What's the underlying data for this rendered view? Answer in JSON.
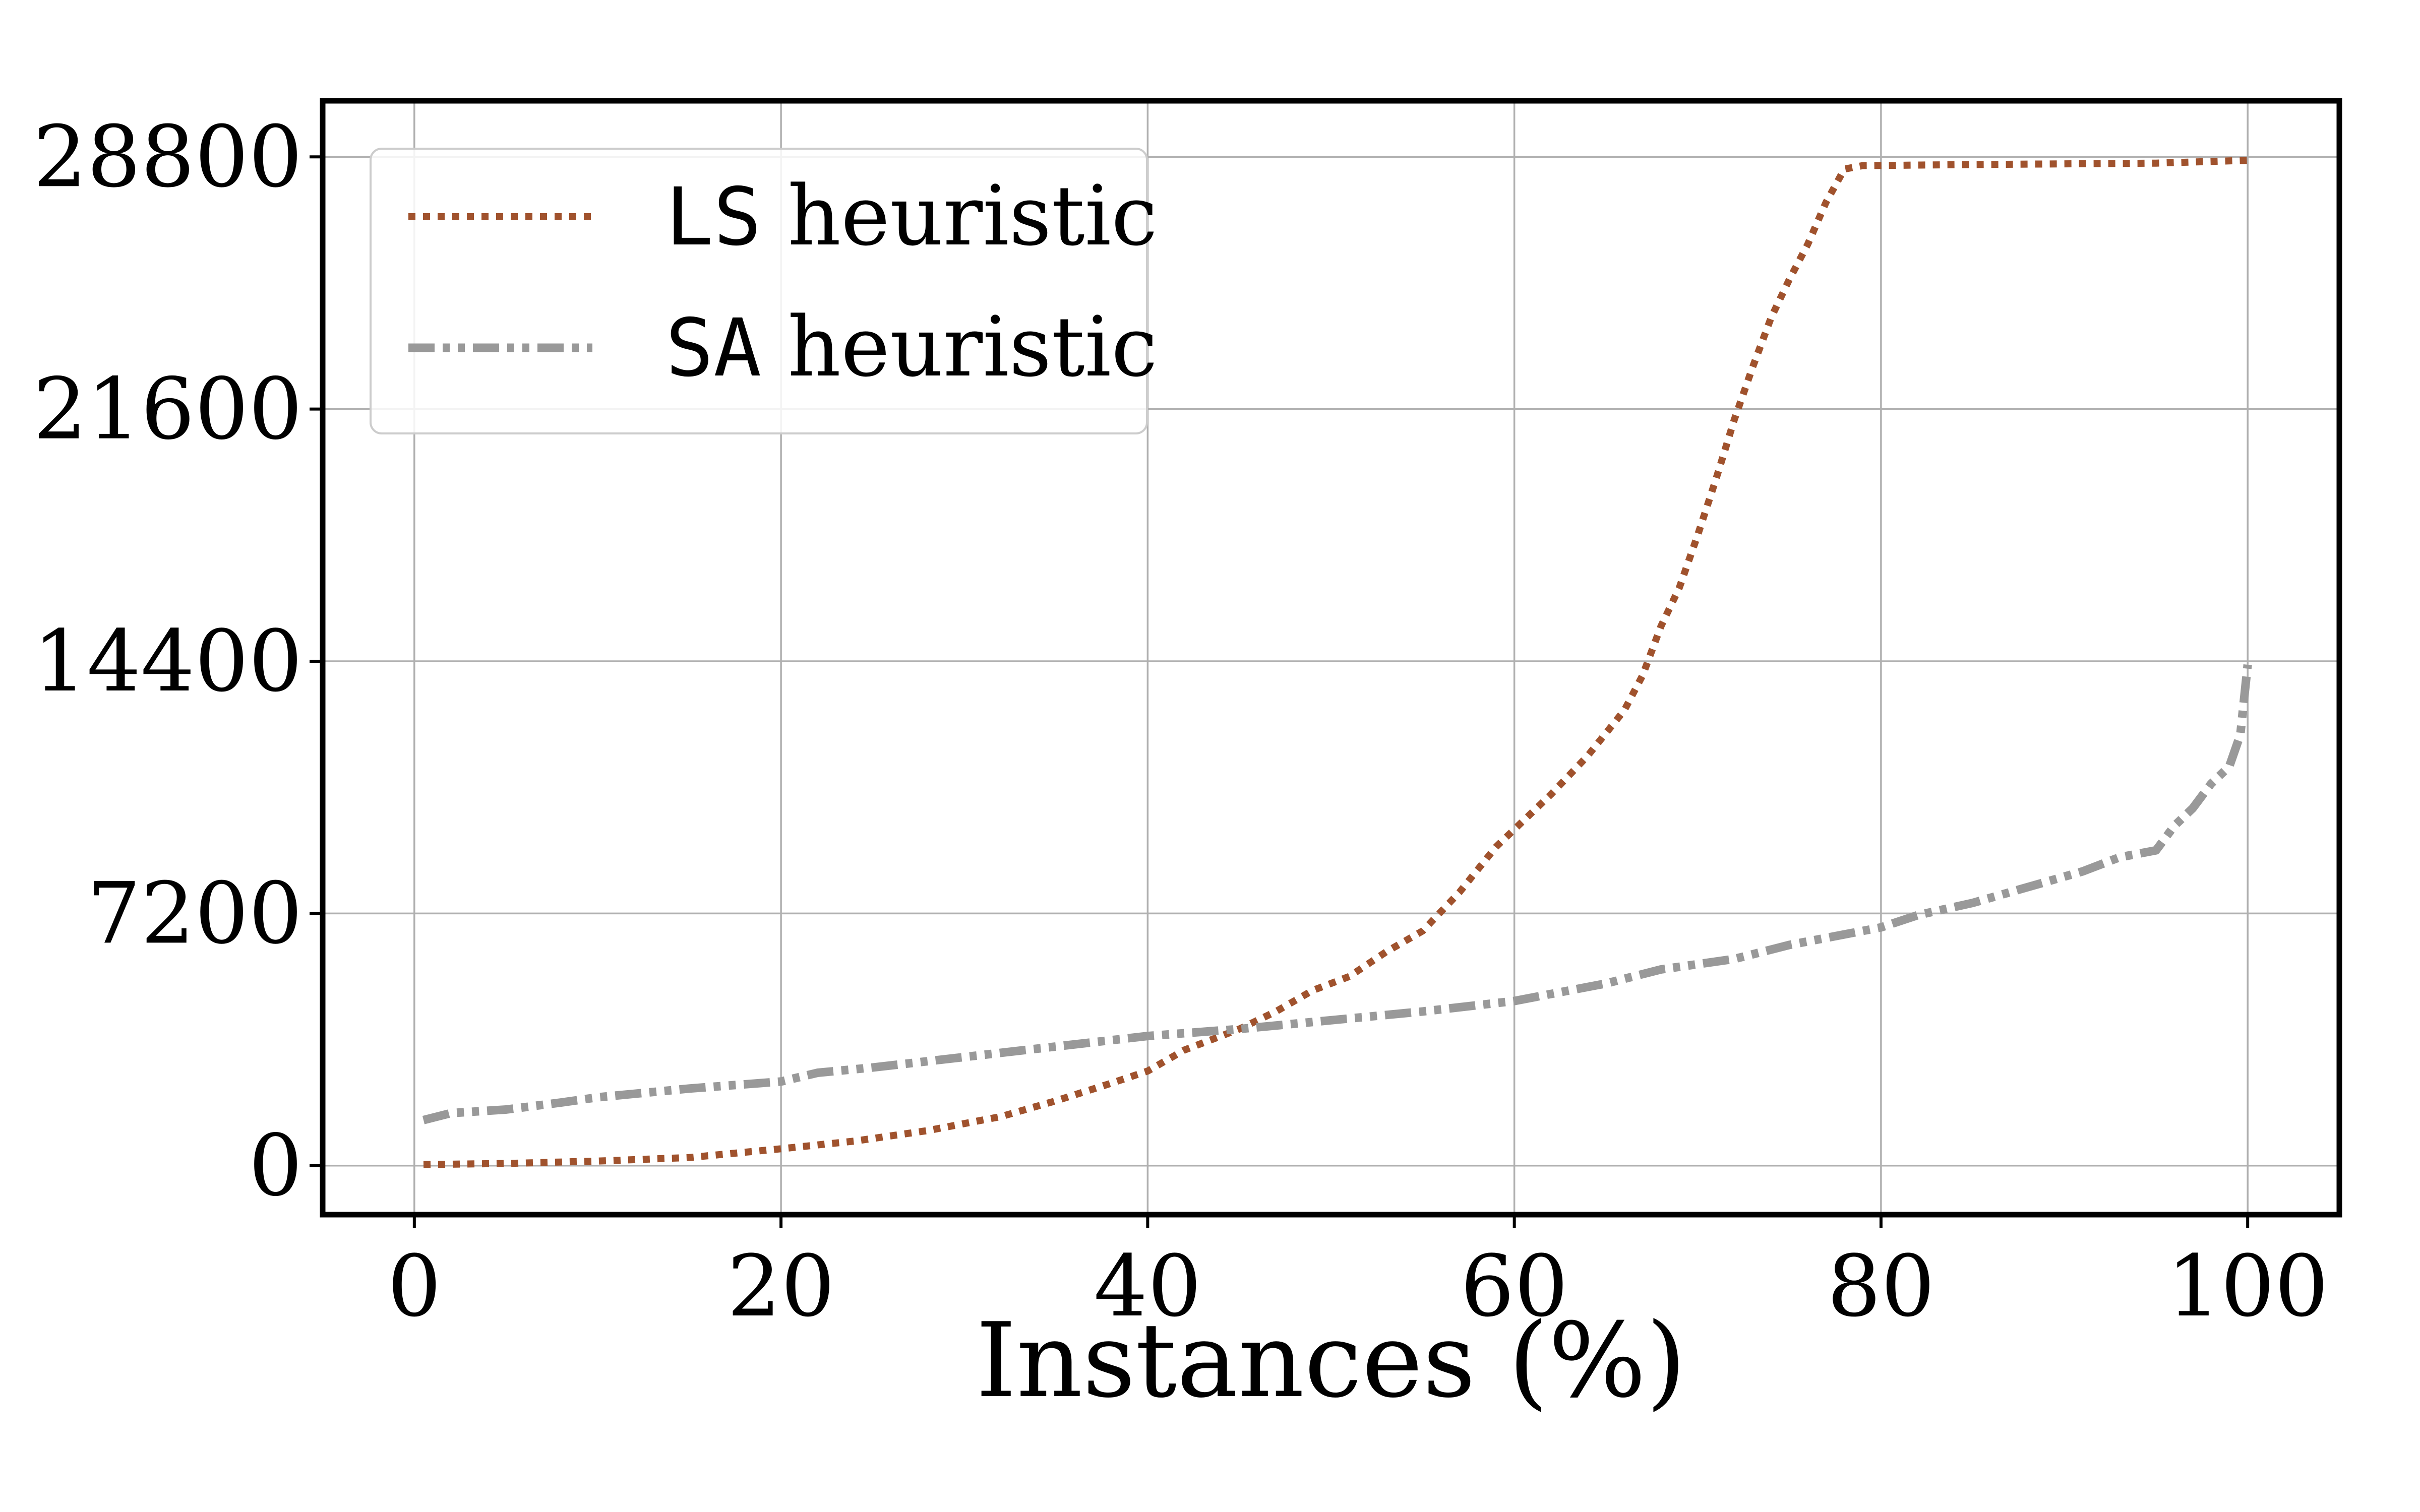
{
  "chart_data": {
    "type": "line",
    "title": "",
    "xlabel": "Instances (%)",
    "ylabel": "",
    "xlim": [
      -5,
      105
    ],
    "ylim": [
      -1400,
      30400
    ],
    "xticks": [
      0,
      20,
      40,
      60,
      80,
      100
    ],
    "yticks": [
      0,
      7200,
      14400,
      21600,
      28800
    ],
    "xtick_labels": [
      "0",
      "20",
      "40",
      "60",
      "80",
      "100"
    ],
    "ytick_labels": [
      "0",
      "7200",
      "14400",
      "21600",
      "28800"
    ],
    "grid": true,
    "legend_position": "top-left",
    "series": [
      {
        "name_code": "LS",
        "name_text": " heuristic",
        "color": "#a0522d",
        "style": "dotted",
        "points": [
          [
            0.5,
            30
          ],
          [
            5,
            60
          ],
          [
            10,
            130
          ],
          [
            15,
            230
          ],
          [
            18,
            380
          ],
          [
            20,
            480
          ],
          [
            24,
            700
          ],
          [
            28,
            1000
          ],
          [
            32,
            1400
          ],
          [
            35,
            1850
          ],
          [
            38,
            2350
          ],
          [
            40,
            2700
          ],
          [
            42,
            3300
          ],
          [
            45,
            3900
          ],
          [
            47,
            4400
          ],
          [
            49,
            5000
          ],
          [
            51,
            5400
          ],
          [
            53,
            6100
          ],
          [
            55,
            6700
          ],
          [
            57,
            7800
          ],
          [
            59,
            9100
          ],
          [
            62,
            10600
          ],
          [
            64,
            11700
          ],
          [
            66,
            13000
          ],
          [
            67,
            14000
          ],
          [
            68,
            15400
          ],
          [
            69,
            16500
          ],
          [
            70,
            18000
          ],
          [
            71,
            19600
          ],
          [
            72,
            21300
          ],
          [
            73,
            22800
          ],
          [
            74,
            24200
          ],
          [
            75,
            25300
          ],
          [
            76,
            26300
          ],
          [
            77,
            27500
          ],
          [
            78,
            28450
          ],
          [
            79,
            28550
          ],
          [
            85,
            28580
          ],
          [
            90,
            28600
          ],
          [
            95,
            28620
          ],
          [
            100,
            28700
          ]
        ]
      },
      {
        "name_code": "SA",
        "name_text": " heuristic",
        "color": "#999999",
        "style": "dashdot",
        "points": [
          [
            0.5,
            1300
          ],
          [
            2,
            1500
          ],
          [
            5,
            1600
          ],
          [
            8,
            1800
          ],
          [
            10,
            1950
          ],
          [
            15,
            2200
          ],
          [
            20,
            2400
          ],
          [
            22,
            2650
          ],
          [
            25,
            2800
          ],
          [
            30,
            3100
          ],
          [
            35,
            3400
          ],
          [
            40,
            3700
          ],
          [
            45,
            3900
          ],
          [
            50,
            4150
          ],
          [
            55,
            4400
          ],
          [
            60,
            4700
          ],
          [
            65,
            5200
          ],
          [
            68,
            5600
          ],
          [
            72,
            5900
          ],
          [
            75,
            6300
          ],
          [
            78,
            6600
          ],
          [
            80,
            6800
          ],
          [
            82,
            7150
          ],
          [
            85,
            7500
          ],
          [
            88,
            7950
          ],
          [
            91,
            8400
          ],
          [
            93,
            8800
          ],
          [
            95,
            9000
          ],
          [
            96,
            9700
          ],
          [
            97,
            10200
          ],
          [
            98,
            10900
          ],
          [
            99,
            11400
          ],
          [
            99.6,
            12300
          ],
          [
            100,
            14300
          ]
        ]
      }
    ]
  }
}
